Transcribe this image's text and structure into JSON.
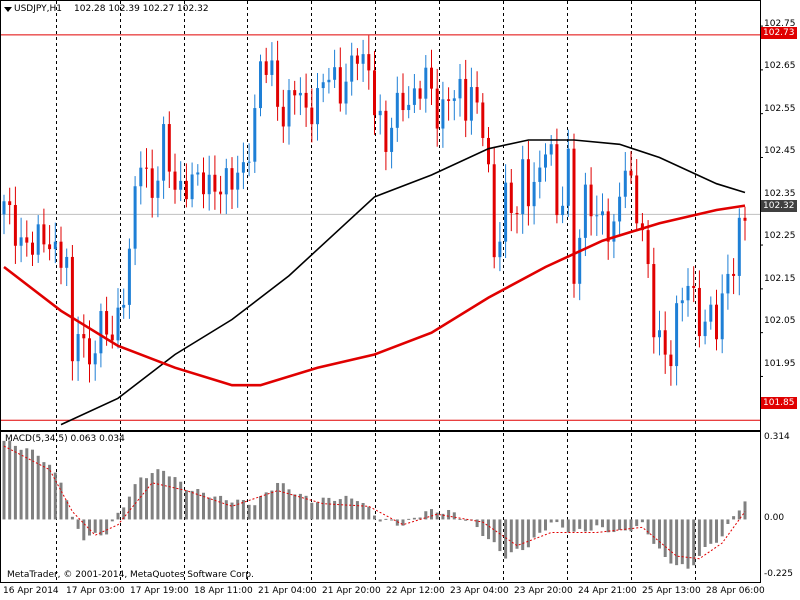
{
  "window": {
    "symbol_title": "USDJPY,H1",
    "ohlc": "102.28 102.39 102.27 102.32",
    "copyright": "MetaTrader, © 2001-2014, MetaQuotes Software Corp."
  },
  "price_axis": {
    "ticks": [
      "102.75",
      "102.65",
      "102.55",
      "102.45",
      "102.35",
      "102.25",
      "102.15",
      "102.05",
      "101.95"
    ],
    "hline_high": "102.73",
    "hline_low": "101.85",
    "current": "102.32"
  },
  "macd_panel": {
    "title": "MACD(5,34,5) 0.063 0.034",
    "ticks": [
      "0.314",
      "0.00",
      "-0.225"
    ]
  },
  "time_axis": {
    "labels": [
      "16 Apr 2014",
      "17 Apr 03:00",
      "17 Apr 19:00",
      "18 Apr 11:00",
      "21 Apr 04:00",
      "21 Apr 20:00",
      "22 Apr 12:00",
      "23 Apr 04:00",
      "23 Apr 20:00",
      "24 Apr 21:00",
      "25 Apr 13:00",
      "28 Apr 06:00"
    ]
  },
  "colors": {
    "candle_up": "#1e7fd6",
    "candle_down": "#e00000",
    "ma_fast": "#e00000",
    "ma_slow": "#000000",
    "level_line": "#e00000",
    "macd_hist": "#808080",
    "macd_signal": "#e00000",
    "grid": "#000000"
  },
  "chart_data": {
    "type": "candlestick",
    "symbol": "USDJPY",
    "timeframe": "H1",
    "y_range": [
      101.83,
      102.805
    ],
    "close_path": [
      [
        0,
        102.33
      ],
      [
        3,
        102.27
      ],
      [
        5,
        102.24
      ],
      [
        8,
        102.27
      ],
      [
        11,
        102.2
      ],
      [
        12,
        101.95
      ],
      [
        13,
        102.08
      ],
      [
        15,
        101.99
      ],
      [
        17,
        102.05
      ],
      [
        19,
        102.05
      ],
      [
        21,
        102.15
      ],
      [
        22,
        102.22
      ],
      [
        23,
        102.35
      ],
      [
        24,
        102.45
      ],
      [
        26,
        102.38
      ],
      [
        27,
        102.42
      ],
      [
        28,
        102.48
      ],
      [
        29,
        102.42
      ],
      [
        30,
        102.38
      ],
      [
        32,
        102.4
      ],
      [
        35,
        102.38
      ],
      [
        37,
        102.4
      ],
      [
        40,
        102.38
      ],
      [
        42,
        102.43
      ],
      [
        44,
        102.55
      ],
      [
        45,
        102.65
      ],
      [
        47,
        102.64
      ],
      [
        49,
        102.55
      ],
      [
        51,
        102.6
      ],
      [
        53,
        102.55
      ],
      [
        55,
        102.6
      ],
      [
        57,
        102.63
      ],
      [
        59,
        102.6
      ],
      [
        60,
        102.65
      ],
      [
        62,
        102.68
      ],
      [
        64,
        102.63
      ],
      [
        66,
        102.55
      ],
      [
        67,
        102.47
      ],
      [
        68,
        102.52
      ],
      [
        70,
        102.58
      ],
      [
        72,
        102.6
      ],
      [
        74,
        102.62
      ],
      [
        76,
        102.55
      ],
      [
        78,
        102.6
      ],
      [
        80,
        102.58
      ],
      [
        81,
        102.55
      ],
      [
        82,
        102.62
      ],
      [
        84,
        102.53
      ],
      [
        85,
        102.4
      ],
      [
        86,
        102.2
      ],
      [
        87,
        102.28
      ],
      [
        88,
        102.38
      ],
      [
        90,
        102.33
      ],
      [
        91,
        102.4
      ],
      [
        92,
        102.35
      ],
      [
        94,
        102.43
      ],
      [
        95,
        102.5
      ],
      [
        96,
        102.45
      ],
      [
        97,
        102.3
      ],
      [
        98,
        102.35
      ],
      [
        99,
        102.45
      ],
      [
        100,
        102.2
      ],
      [
        101,
        102.28
      ],
      [
        102,
        102.35
      ],
      [
        104,
        102.3
      ],
      [
        105,
        102.33
      ],
      [
        107,
        102.28
      ],
      [
        108,
        102.35
      ],
      [
        109,
        102.42
      ],
      [
        110,
        102.38
      ],
      [
        112,
        102.3
      ],
      [
        113,
        102.18
      ],
      [
        114,
        102.05
      ],
      [
        116,
        102.0
      ],
      [
        117,
        102.02
      ],
      [
        118,
        102.1
      ],
      [
        120,
        102.15
      ],
      [
        122,
        102.08
      ],
      [
        124,
        102.1
      ],
      [
        125,
        102.05
      ],
      [
        126,
        102.1
      ],
      [
        127,
        102.18
      ],
      [
        128,
        102.22
      ],
      [
        129,
        102.3
      ],
      [
        130,
        102.32
      ]
    ],
    "ma_fast_path": [
      [
        0,
        102.2
      ],
      [
        10,
        102.1
      ],
      [
        20,
        102.02
      ],
      [
        30,
        101.97
      ],
      [
        40,
        101.93
      ],
      [
        45,
        101.93
      ],
      [
        55,
        101.97
      ],
      [
        65,
        102.0
      ],
      [
        75,
        102.05
      ],
      [
        85,
        102.13
      ],
      [
        95,
        102.2
      ],
      [
        105,
        102.26
      ],
      [
        115,
        102.3
      ],
      [
        125,
        102.33
      ],
      [
        130,
        102.34
      ]
    ],
    "ma_slow_path": [
      [
        10,
        101.84
      ],
      [
        20,
        101.9
      ],
      [
        30,
        102.0
      ],
      [
        40,
        102.08
      ],
      [
        50,
        102.18
      ],
      [
        60,
        102.3
      ],
      [
        65,
        102.36
      ],
      [
        75,
        102.41
      ],
      [
        85,
        102.47
      ],
      [
        92,
        102.49
      ],
      [
        100,
        102.49
      ],
      [
        108,
        102.48
      ],
      [
        115,
        102.45
      ],
      [
        125,
        102.39
      ],
      [
        130,
        102.37
      ]
    ],
    "macd": {
      "y_range": [
        -0.235,
        0.33
      ],
      "hist_path": [
        [
          0,
          0.3
        ],
        [
          6,
          0.25
        ],
        [
          10,
          0.15
        ],
        [
          12,
          0.0
        ],
        [
          14,
          -0.07
        ],
        [
          18,
          -0.05
        ],
        [
          20,
          0.02
        ],
        [
          24,
          0.16
        ],
        [
          28,
          0.19
        ],
        [
          32,
          0.12
        ],
        [
          38,
          0.08
        ],
        [
          44,
          0.06
        ],
        [
          48,
          0.14
        ],
        [
          54,
          0.07
        ],
        [
          58,
          0.08
        ],
        [
          62,
          0.08
        ],
        [
          66,
          0.0
        ],
        [
          70,
          -0.02
        ],
        [
          74,
          0.03
        ],
        [
          78,
          0.03
        ],
        [
          82,
          -0.01
        ],
        [
          88,
          -0.14
        ],
        [
          92,
          -0.1
        ],
        [
          96,
          -0.01
        ],
        [
          100,
          -0.05
        ],
        [
          104,
          -0.03
        ],
        [
          108,
          -0.05
        ],
        [
          112,
          -0.02
        ],
        [
          116,
          -0.15
        ],
        [
          120,
          -0.19
        ],
        [
          124,
          -0.09
        ],
        [
          126,
          -0.07
        ],
        [
          128,
          0.02
        ],
        [
          130,
          0.06
        ]
      ],
      "signal_path": [
        [
          0,
          0.28
        ],
        [
          8,
          0.19
        ],
        [
          12,
          0.03
        ],
        [
          16,
          -0.06
        ],
        [
          20,
          -0.02
        ],
        [
          26,
          0.14
        ],
        [
          32,
          0.11
        ],
        [
          40,
          0.05
        ],
        [
          48,
          0.11
        ],
        [
          56,
          0.06
        ],
        [
          64,
          0.05
        ],
        [
          70,
          -0.02
        ],
        [
          76,
          0.02
        ],
        [
          84,
          -0.01
        ],
        [
          90,
          -0.1
        ],
        [
          96,
          -0.05
        ],
        [
          104,
          -0.05
        ],
        [
          112,
          -0.03
        ],
        [
          118,
          -0.14
        ],
        [
          122,
          -0.15
        ],
        [
          126,
          -0.09
        ],
        [
          130,
          0.03
        ]
      ]
    }
  }
}
